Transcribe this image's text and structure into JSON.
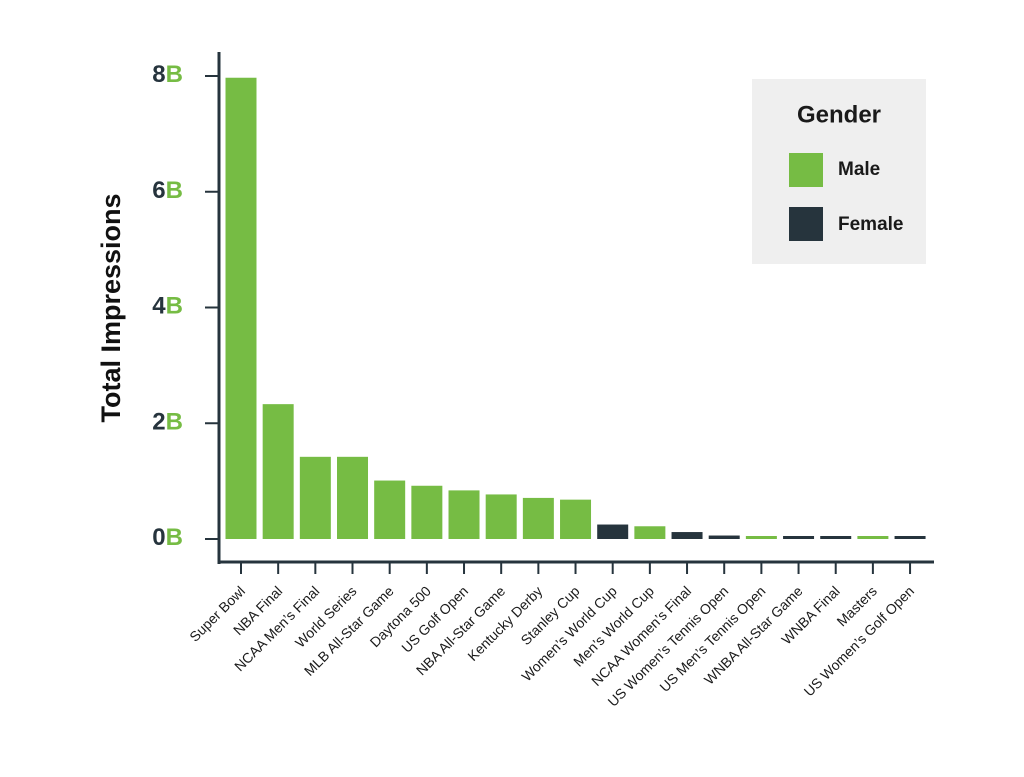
{
  "colors": {
    "Male": "#76bc44",
    "Female": "#26343d",
    "axis": "#26343d",
    "legend_bg": "#efefef"
  },
  "chart_data": {
    "type": "bar",
    "ylabel": "Total Impressions",
    "ylim": [
      0,
      8
    ],
    "yticks": [
      {
        "value": 0,
        "num": "0",
        "unit": "B"
      },
      {
        "value": 2,
        "num": "2",
        "unit": "B"
      },
      {
        "value": 4,
        "num": "4",
        "unit": "B"
      },
      {
        "value": 6,
        "num": "6",
        "unit": "B"
      },
      {
        "value": 8,
        "num": "8",
        "unit": "B"
      }
    ],
    "legend": {
      "title": "Gender",
      "position": "top-right",
      "entries": [
        "Male",
        "Female"
      ]
    },
    "categories": [
      "Super Bowl",
      "NBA Final",
      "NCAA Men’s Final",
      "World Series",
      "MLB All-Star Game",
      "Daytona 500",
      "US Golf Open",
      "NBA All-Star Game",
      "Kentucky Derby",
      "Stanley Cup",
      "Women’s World Cup",
      "Men’s World Cup",
      "NCAA Women’s Final",
      "US Women’s Tennis Open",
      "US Men’s Tennis Open",
      "WNBA All-Star Game",
      "WNBA Final",
      "Masters",
      "US Women’s Golf Open"
    ],
    "values": [
      7.97,
      2.33,
      1.42,
      1.42,
      1.01,
      0.92,
      0.84,
      0.77,
      0.71,
      0.68,
      0.25,
      0.22,
      0.12,
      0.06,
      0.02,
      0.02,
      0.02,
      0.02,
      0.02
    ],
    "gender": [
      "Male",
      "Male",
      "Male",
      "Male",
      "Male",
      "Male",
      "Male",
      "Male",
      "Male",
      "Male",
      "Female",
      "Male",
      "Female",
      "Female",
      "Male",
      "Female",
      "Female",
      "Male",
      "Female"
    ]
  }
}
